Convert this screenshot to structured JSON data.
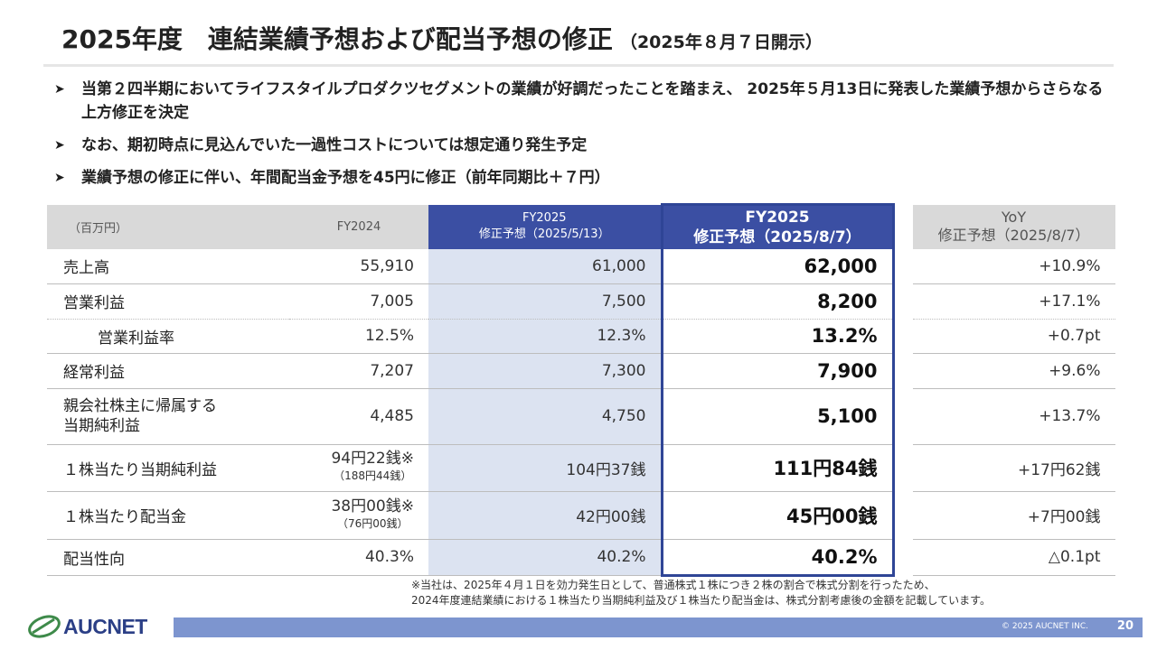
{
  "title": {
    "main": "2025年度　連結業績予想および配当予想の修正",
    "sub": "（2025年８月７日開示）"
  },
  "bullets": [
    "当第２四半期においてライフスタイルプロダクツセグメントの業績が好調だったことを踏まえ、 2025年５月13日に発表した業績予想からさらなる上方修正を決定",
    "なお、期初時点に見込んでいた一過性コストについては想定通り発生予定",
    "業績予想の修正に伴い、年間配当金予想を45円に修正（前年同期比＋７円）"
  ],
  "table": {
    "headers": {
      "unit": "（百万円）",
      "fy2024": "FY2024",
      "rev1_line1": "FY2025",
      "rev1_line2": "修正予想（2025/5/13）",
      "rev2_line1": "FY2025",
      "rev2_line2": "修正予想（2025/8/7）",
      "yoy_line1": "YoY",
      "yoy_line2": "修正予想（2025/8/7）"
    },
    "rows": [
      {
        "label": "売上高",
        "fy2024": "55,910",
        "rev1": "61,000",
        "rev2": "62,000",
        "yoy": "+10.9%"
      },
      {
        "label": "営業利益",
        "fy2024": "7,005",
        "rev1": "7,500",
        "rev2": "8,200",
        "yoy": "+17.1%"
      },
      {
        "label": "営業利益率",
        "fy2024": "12.5%",
        "rev1": "12.3%",
        "rev2": "13.2%",
        "yoy": "+0.7pt"
      },
      {
        "label": "経常利益",
        "fy2024": "7,207",
        "rev1": "7,300",
        "rev2": "7,900",
        "yoy": "+9.6%"
      },
      {
        "label_line1": "親会社株主に帰属する",
        "label_line2": "当期純利益",
        "fy2024": "4,485",
        "rev1": "4,750",
        "rev2": "5,100",
        "yoy": "+13.7%"
      },
      {
        "label": "１株当たり当期純利益",
        "fy2024": "94円22銭※",
        "fy2024_sub": "（188円44銭）",
        "rev1": "104円37銭",
        "rev2": "111円84銭",
        "yoy": "+17円62銭"
      },
      {
        "label": "１株当たり配当金",
        "fy2024": "38円00銭※",
        "fy2024_sub": "（76円00銭）",
        "rev1": "42円00銭",
        "rev2": "45円00銭",
        "yoy": "+7円00銭"
      },
      {
        "label": "配当性向",
        "fy2024": "40.3%",
        "rev1": "40.2%",
        "rev2": "40.2%",
        "yoy": "△0.1pt"
      }
    ]
  },
  "footnote": {
    "line1": "※当社は、2025年４月１日を効力発生日として、普通株式１株につき２株の割合で株式分割を行ったため、",
    "line2": "2024年度連結業績における１株当たり当期純利益及び１株当たり配当金は、株式分割考慮後の金額を記載しています。"
  },
  "footer": {
    "logo_text": "AUCNET",
    "copyright": "© 2025 AUCNET INC.",
    "page": "20"
  },
  "colors": {
    "accent": "#3b4fa3",
    "highlight_column": "#dce3f1",
    "header_gray": "#d9d9d9",
    "footer_bar": "#7d95cf"
  }
}
